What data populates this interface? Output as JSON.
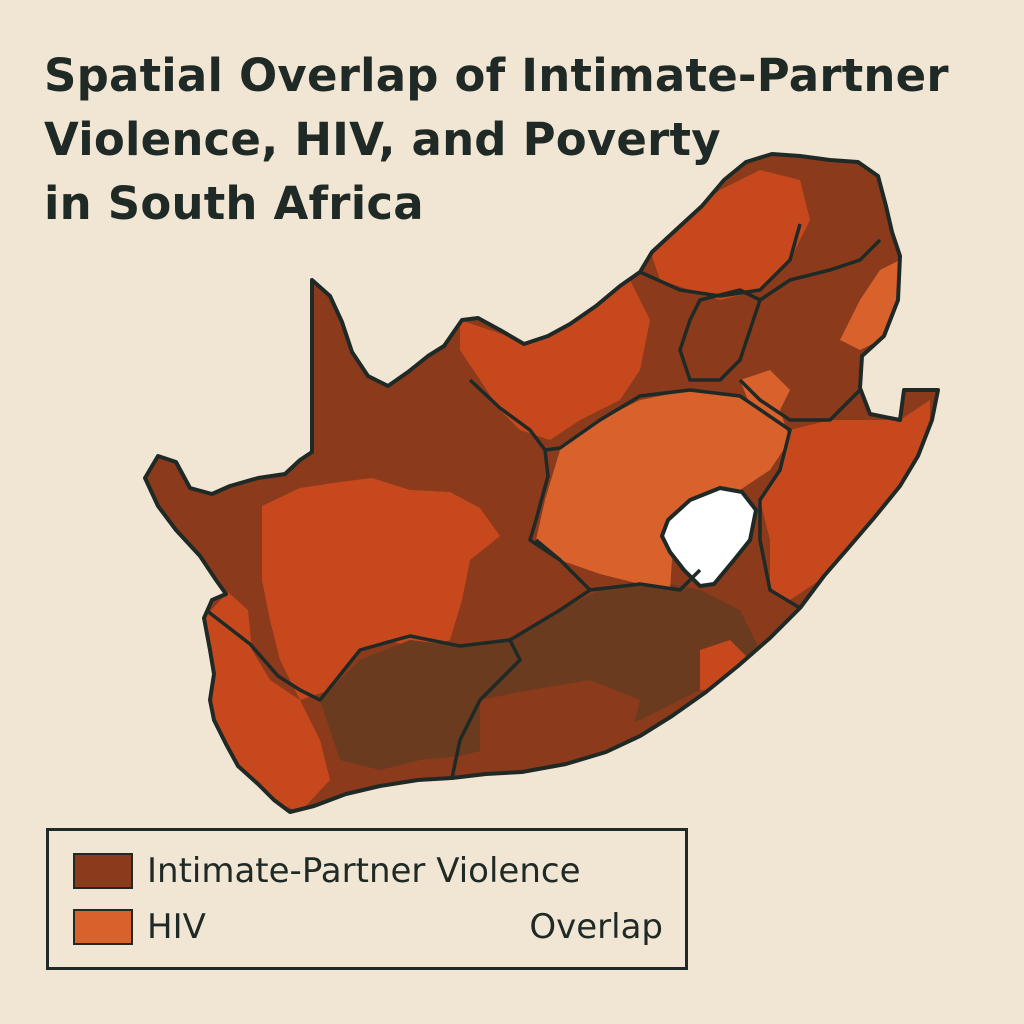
{
  "title": {
    "line1": "Spatial Overlap of Intimate-Partner",
    "line2": "Violence, HIV, and Poverty",
    "line3": "in South Africa"
  },
  "legend": {
    "items": [
      {
        "label": "Intimate-Partner Violence",
        "color": "#8b3a1c"
      },
      {
        "label": "HIV",
        "color": "#d9612c"
      }
    ],
    "overlap_label": "Overlap"
  },
  "colors": {
    "background": "#f1e6d4",
    "ipv": "#8b3a1c",
    "hiv": "#d9612c",
    "overlap": "#6b3b1f",
    "high": "#c8481e",
    "outline": "#1f2a26",
    "enclave": "#ffffff"
  }
}
